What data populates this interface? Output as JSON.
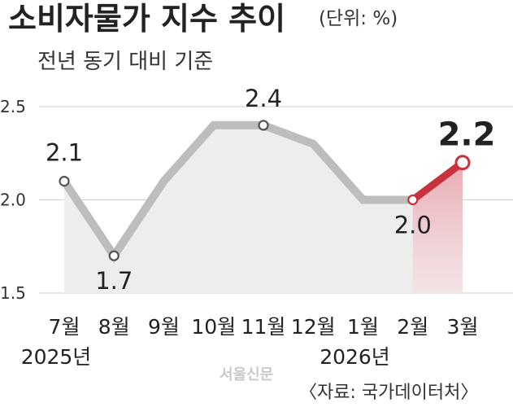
{
  "header": {
    "title": "소비자물가 지수 추이",
    "unit": "(단위: %)",
    "subtitle": "전년 동기 대비 기준"
  },
  "chart_data": {
    "type": "line",
    "categories": [
      "7월",
      "8월",
      "9월",
      "10월",
      "11월",
      "12월",
      "1월",
      "2월",
      "3월"
    ],
    "year_labels": [
      {
        "category_index": 0,
        "text": "2025년"
      },
      {
        "category_index": 6,
        "text": "2026년"
      }
    ],
    "values": [
      2.1,
      1.7,
      2.1,
      2.4,
      2.4,
      2.3,
      2.0,
      2.0,
      2.2
    ],
    "ylim": [
      1.5,
      2.5
    ],
    "yticks": [
      "1.5",
      "2.0",
      "2.5"
    ],
    "grid": true,
    "data_labels": [
      {
        "index": 0,
        "text": "2.1"
      },
      {
        "index": 1,
        "text": "1.7"
      },
      {
        "index": 4,
        "text": "2.4"
      },
      {
        "index": 7,
        "text": "2.0"
      },
      {
        "index": 8,
        "text": "2.2"
      }
    ],
    "highlight_from_index": 7,
    "colors": {
      "line": "#bdbdbd",
      "highlight": "#c8323c",
      "area": "#ededed",
      "grid": "#cfcfcf"
    }
  },
  "footer": {
    "logo": "서울신문",
    "source": "〈자료: 국가데이터처〉"
  }
}
